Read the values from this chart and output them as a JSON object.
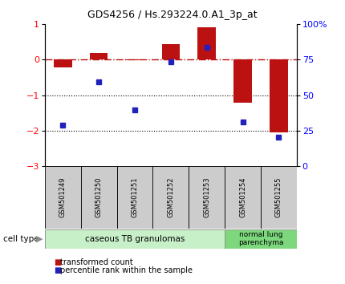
{
  "title": "GDS4256 / Hs.293224.0.A1_3p_at",
  "samples": [
    "GSM501249",
    "GSM501250",
    "GSM501251",
    "GSM501252",
    "GSM501253",
    "GSM501254",
    "GSM501255"
  ],
  "bar_values": [
    -0.22,
    0.18,
    -0.02,
    0.44,
    0.92,
    -1.22,
    -2.05
  ],
  "scatter_values": [
    -1.85,
    -0.62,
    -1.42,
    -0.06,
    0.34,
    -1.75,
    -2.18
  ],
  "bar_color": "#bb1111",
  "scatter_color": "#2222bb",
  "ylim_left": [
    -3,
    1
  ],
  "ylim_right": [
    0,
    100
  ],
  "yticks_left": [
    -3,
    -2,
    -1,
    0,
    1
  ],
  "yticks_right": [
    0,
    25,
    50,
    75,
    100
  ],
  "ytick_labels_right": [
    "0",
    "25",
    "50",
    "75",
    "100%"
  ],
  "dotted_lines": [
    -1,
    -2
  ],
  "group1_label": "caseous TB granulomas",
  "group2_label": "normal lung\nparenchyma",
  "group1_color": "#c8f0c8",
  "group2_color": "#7dd87d",
  "cell_type_label": "cell type",
  "legend1_label": "transformed count",
  "legend2_label": "percentile rank within the sample",
  "bar_width": 0.5,
  "sample_box_color": "#cccccc",
  "background_color": "#ffffff"
}
